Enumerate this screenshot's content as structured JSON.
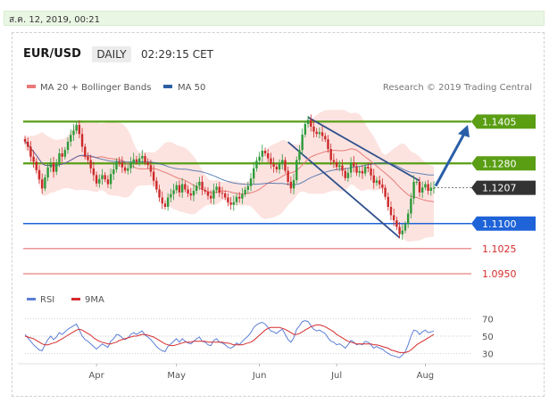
{
  "datebar": {
    "text": "ส.ค. 12, 2019, 00:21"
  },
  "header": {
    "pair": "EUR/USD",
    "timeframe": "DAILY",
    "time": "02:29:15 CET"
  },
  "legend": {
    "ma20": "MA 20 + Bollinger Bands",
    "ma50": "MA 50",
    "credit": "Research © 2019 Trading Central",
    "rsi": "RSI",
    "ma9": "9MA"
  },
  "colors": {
    "ma20": "#e87a78",
    "ma50": "#2d5fa3",
    "band": "#fbd9d6",
    "up": "#2e9a3a",
    "down": "#cc2a2a",
    "green_level": "#5a9e14",
    "blue_level": "#1e63d8",
    "red_level": "#d62c2c",
    "current": "#333333",
    "arrow": "#2a5fa8"
  },
  "chart_data": [
    {
      "type": "candlestick",
      "title": "EUR/USD",
      "x_ticks": [
        "Apr",
        "May",
        "Jun",
        "Jul",
        "Aug"
      ],
      "ylim": [
        1.091,
        1.147
      ],
      "levels": [
        {
          "label": "1.1405",
          "value": 1.1405,
          "kind": "resistance"
        },
        {
          "label": "1.1280",
          "value": 1.128,
          "kind": "resistance"
        },
        {
          "label": "1.1207",
          "value": 1.1207,
          "kind": "current"
        },
        {
          "label": "1.1100",
          "value": 1.11,
          "kind": "pivot"
        },
        {
          "label": "1.1025",
          "value": 1.1025,
          "kind": "support"
        },
        {
          "label": "1.0950",
          "value": 1.095,
          "kind": "support"
        }
      ],
      "series": [
        {
          "name": "MA 20 + Bollinger Bands"
        },
        {
          "name": "MA 50"
        }
      ],
      "close": [
        1.1345,
        1.133,
        1.13,
        1.1285,
        1.126,
        1.1232,
        1.1205,
        1.1238,
        1.1268,
        1.128,
        1.1255,
        1.1282,
        1.131,
        1.13,
        1.132,
        1.1345,
        1.1365,
        1.1378,
        1.1395,
        1.1368,
        1.133,
        1.13,
        1.129,
        1.1265,
        1.1245,
        1.122,
        1.1233,
        1.1245,
        1.1232,
        1.1218,
        1.1248,
        1.1262,
        1.1285,
        1.1283,
        1.1268,
        1.1258,
        1.1265,
        1.1283,
        1.1292,
        1.1285,
        1.1295,
        1.1302,
        1.1283,
        1.1275,
        1.1255,
        1.1228,
        1.1202,
        1.1178,
        1.116,
        1.115,
        1.1178,
        1.1188,
        1.12,
        1.1215,
        1.1193,
        1.1218,
        1.1202,
        1.119,
        1.1184,
        1.1198,
        1.1213,
        1.1225,
        1.1201,
        1.1196,
        1.1183,
        1.1175,
        1.12,
        1.121,
        1.1192,
        1.119,
        1.1178,
        1.1163,
        1.1156,
        1.1164,
        1.118,
        1.1175,
        1.1188,
        1.1201,
        1.1212,
        1.1235,
        1.1265,
        1.1288,
        1.13,
        1.1318,
        1.131,
        1.1295,
        1.1278,
        1.127,
        1.1262,
        1.1278,
        1.129,
        1.1258,
        1.1225,
        1.1205,
        1.123,
        1.129,
        1.132,
        1.1366,
        1.1398,
        1.141,
        1.139,
        1.1375,
        1.1368,
        1.1373,
        1.1362,
        1.1352,
        1.1323,
        1.129,
        1.1284,
        1.1269,
        1.1274,
        1.1258,
        1.1236,
        1.1252,
        1.1282,
        1.1271,
        1.1252,
        1.1257,
        1.125,
        1.127,
        1.1265,
        1.1244,
        1.1222,
        1.1229,
        1.1217,
        1.1207,
        1.118,
        1.115,
        1.1125,
        1.111,
        1.109,
        1.1068,
        1.1079,
        1.1098,
        1.113,
        1.1175,
        1.1225,
        1.1225,
        1.1193,
        1.1208,
        1.1218,
        1.1198,
        1.1207,
        1.1207
      ],
      "xlabel": "",
      "ylabel": ""
    },
    {
      "type": "line",
      "title": "RSI",
      "ylim": [
        20,
        80
      ],
      "y_ticks": [
        70,
        50,
        30
      ],
      "series": [
        {
          "name": "RSI",
          "values": [
            52,
            48,
            44,
            40,
            37,
            34,
            33,
            40,
            46,
            50,
            46,
            49,
            54,
            52,
            55,
            58,
            60,
            62,
            64,
            57,
            50,
            46,
            44,
            41,
            38,
            35,
            38,
            41,
            39,
            37,
            44,
            47,
            52,
            51,
            48,
            46,
            48,
            52,
            54,
            52,
            54,
            56,
            51,
            49,
            46,
            42,
            38,
            35,
            33,
            32,
            38,
            41,
            44,
            47,
            43,
            47,
            44,
            42,
            41,
            44,
            47,
            49,
            44,
            43,
            40,
            39,
            45,
            47,
            43,
            42,
            40,
            37,
            36,
            38,
            42,
            40,
            44,
            47,
            50,
            54,
            60,
            63,
            65,
            66,
            64,
            60,
            56,
            55,
            53,
            56,
            58,
            52,
            46,
            43,
            48,
            58,
            62,
            67,
            68,
            67,
            62,
            58,
            56,
            57,
            55,
            53,
            48,
            44,
            43,
            40,
            41,
            39,
            36,
            40,
            45,
            43,
            40,
            41,
            40,
            44,
            43,
            40,
            36,
            38,
            36,
            35,
            32,
            30,
            28,
            27,
            26,
            25,
            28,
            32,
            40,
            50,
            57,
            56,
            52,
            55,
            57,
            54,
            55,
            56
          ]
        },
        {
          "name": "9MA",
          "values": [
            50,
            49,
            48,
            47,
            45,
            43,
            41,
            40,
            40,
            41,
            42,
            43,
            45,
            47,
            49,
            51,
            53,
            55,
            57,
            58,
            57,
            55,
            53,
            51,
            48,
            46,
            44,
            43,
            42,
            41,
            41,
            42,
            43,
            45,
            46,
            47,
            48,
            49,
            50,
            50,
            51,
            52,
            52,
            51,
            50,
            49,
            47,
            45,
            43,
            41,
            40,
            39,
            39,
            40,
            41,
            42,
            43,
            43,
            43,
            44,
            44,
            44,
            44,
            44,
            43,
            43,
            43,
            43,
            43,
            43,
            42,
            42,
            41,
            40,
            40,
            40,
            40,
            41,
            42,
            43,
            45,
            48,
            51,
            54,
            57,
            59,
            60,
            60,
            60,
            60,
            59,
            58,
            56,
            54,
            52,
            52,
            53,
            55,
            57,
            59,
            61,
            62,
            63,
            63,
            62,
            61,
            59,
            57,
            55,
            52,
            50,
            48,
            46,
            44,
            43,
            42,
            41,
            41,
            41,
            41,
            41,
            41,
            40,
            40,
            39,
            38,
            37,
            36,
            34,
            33,
            32,
            31,
            31,
            31,
            32,
            34,
            37,
            40,
            42,
            44,
            46,
            48,
            50,
            52
          ]
        }
      ]
    }
  ]
}
